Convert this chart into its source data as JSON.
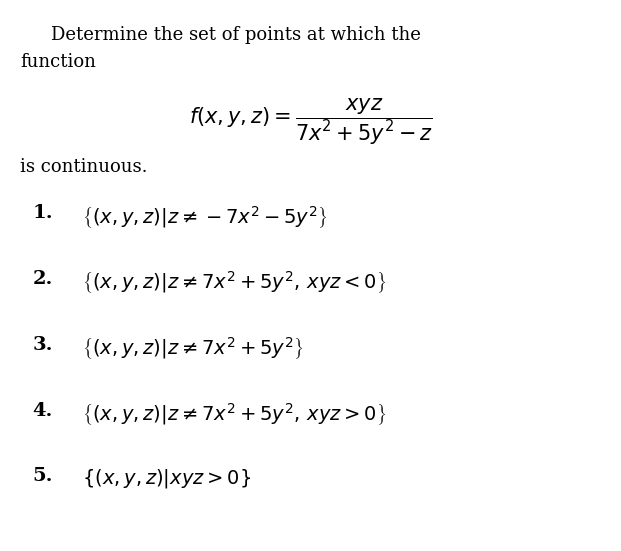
{
  "background_color": "#ffffff",
  "figsize": [
    6.21,
    5.51
  ],
  "dpi": 100,
  "title_text": "Determine the set of points at which the\nfunction",
  "formula": "$f(x, y, z) = \\dfrac{xyz}{7x^2 + 5y^2 - z}$",
  "continuous_text": "is continuous.",
  "items": [
    {
      "num": "1.",
      "expr": "$\\left\\{(x, y, z)|z \\neq -7x^2 - 5y^2\\right\\}$"
    },
    {
      "num": "2.",
      "expr": "$\\left\\{(x, y, z)|z \\neq 7x^2 + 5y^2,\\, xyz < 0\\right\\}$"
    },
    {
      "num": "3.",
      "expr": "$\\left\\{(x, y, z)|z \\neq 7x^2 + 5y^2\\right\\}$"
    },
    {
      "num": "4.",
      "expr": "$\\left\\{(x, y, z)|z \\neq 7x^2 + 5y^2,\\, xyz > 0\\right\\}$"
    },
    {
      "num": "5.",
      "expr": "$\\left\\{(x, y, z)|xyz > 0\\right\\}$"
    }
  ],
  "font_size_title": 13,
  "font_size_formula": 14,
  "font_size_items": 13,
  "text_color": "#000000"
}
